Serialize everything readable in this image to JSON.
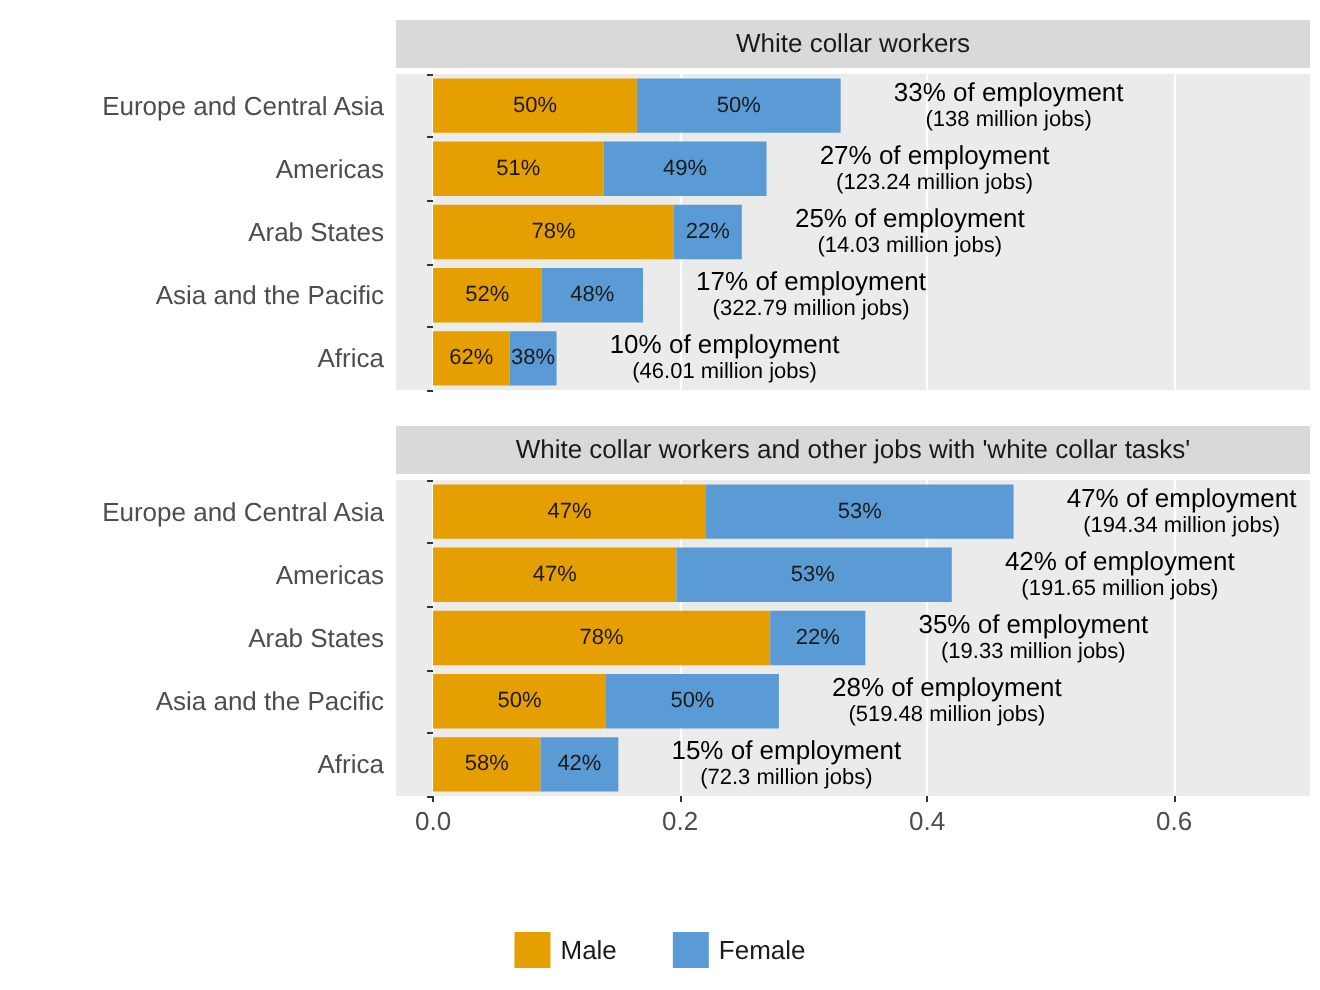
{
  "chart_data": [
    {
      "type": "bar",
      "orientation": "horizontal",
      "stacked": true,
      "title": "White collar workers",
      "categories": [
        "Europe and Central Asia",
        "Americas",
        "Arab States",
        "Asia and the Pacific",
        "Africa"
      ],
      "series": [
        {
          "color": "#e69f00",
          "values": [
            0.165,
            0.138,
            0.195,
            0.088,
            0.062
          ]
        },
        {
          "color": "#5b9bd5",
          "values": [
            0.165,
            0.132,
            0.055,
            0.082,
            0.038
          ]
        }
      ],
      "xlim": [
        -0.03,
        0.71
      ],
      "xticks": [
        0,
        0.2,
        0.4,
        0.6
      ],
      "grid": "x",
      "legend": false,
      "tick_labels": "y",
      "annotations": [
        {
          "text": "50%",
          "x": 0.0825,
          "y": "Europe and Central Asia"
        },
        {
          "text": "50%",
          "x": 0.2475,
          "y": "Europe and Central Asia"
        },
        {
          "text": "51%",
          "x": 0.069,
          "y": "Americas"
        },
        {
          "text": "49%",
          "x": 0.204,
          "y": "Americas"
        },
        {
          "text": "78%",
          "x": 0.0975,
          "y": "Arab States"
        },
        {
          "text": "22%",
          "x": 0.2225,
          "y": "Arab States"
        },
        {
          "text": "52%",
          "x": 0.044,
          "y": "Asia and the Pacific"
        },
        {
          "text": "48%",
          "x": 0.129,
          "y": "Asia and the Pacific"
        },
        {
          "text": "62%",
          "x": 0.031,
          "y": "Africa"
        },
        {
          "text": "38%",
          "x": 0.081,
          "y": "Africa"
        },
        {
          "text": "33% of employment",
          "x": 0.33,
          "y": "Europe and Central Asia"
        },
        "(138 million jobs)",
        {
          "text": "27% of employment",
          "x": 0.27,
          "y": "Americas"
        },
        "(123.24 million jobs)",
        {
          "text": "25% of employment",
          "x": 0.25,
          "y": "Arab States"
        },
        "(14.03 million jobs)",
        {
          "text": "17% of employment",
          "x": 0.17,
          "y": "Asia and the Pacific"
        },
        "(322.79 million jobs)",
        {
          "text": "10% of employment",
          "x": 0.1,
          "y": "Africa"
        },
        "(46.01 million jobs)"
      ]
    },
    {
      "type": "bar",
      "orientation": "horizontal",
      "stacked": true,
      "title": "White collar workers and other jobs with 'white collar tasks'",
      "categories": [
        "Europe and Central Asia",
        "Americas",
        "Arab States",
        "Asia and the Pacific",
        "Africa"
      ],
      "series": [
        {
          "name": "Male",
          "color": "#e69f00",
          "values": [
            0.221,
            0.197,
            0.273,
            0.14,
            0.087
          ]
        },
        {
          "name": "Female",
          "color": "#5b9bd5",
          "values": [
            0.249,
            0.223,
            0.077,
            0.14,
            0.063
          ]
        }
      ],
      "xlim": [
        -0.03,
        0.71
      ],
      "xticks": [
        {
          "value": 0,
          "label": "0.0"
        },
        0.2,
        0.4,
        0.6
      ],
      "grid": "x",
      "legend": "bottom",
      "annotations": [
        {
          "text": "47%",
          "x": 0.1105,
          "y": "Europe and Central Asia"
        },
        {
          "text": "53%",
          "x": 0.3455,
          "y": "Europe and Central Asia"
        },
        {
          "text": "47%",
          "x": 0.0985,
          "y": "Americas"
        },
        {
          "text": "53%",
          "x": 0.3075,
          "y": "Americas"
        },
        {
          "text": "78%",
          "x": 0.1365,
          "y": "Arab States"
        },
        {
          "text": "22%",
          "x": 0.3115,
          "y": "Arab States"
        },
        {
          "text": "50%",
          "x": 0.07,
          "y": "Asia and the Pacific"
        },
        {
          "text": "50%",
          "x": 0.21,
          "y": "Asia and the Pacific"
        },
        {
          "text": "58%",
          "x": 0.0435,
          "y": "Africa"
        },
        {
          "text": "42%",
          "x": 0.1185,
          "y": "Africa"
        },
        {
          "text": "47% of employment",
          "x": 0.47,
          "y": "Europe and Central Asia"
        },
        "(194.34 million jobs)",
        {
          "text": "42% of employment",
          "x": 0.42,
          "y": "Americas"
        },
        "(191.65 million jobs)",
        {
          "text": "35% of employment",
          "x": 0.35,
          "y": "Arab States"
        },
        "(19.33 million jobs)",
        {
          "text": "28% of employment",
          "x": 0.28,
          "y": "Asia and the Pacific"
        },
        "(519.48 million jobs)",
        {
          "text": "15% of employment",
          "x": 0.15,
          "y": "Africa"
        },
        "(72.3 million jobs)"
      ]
    }
  ]
}
